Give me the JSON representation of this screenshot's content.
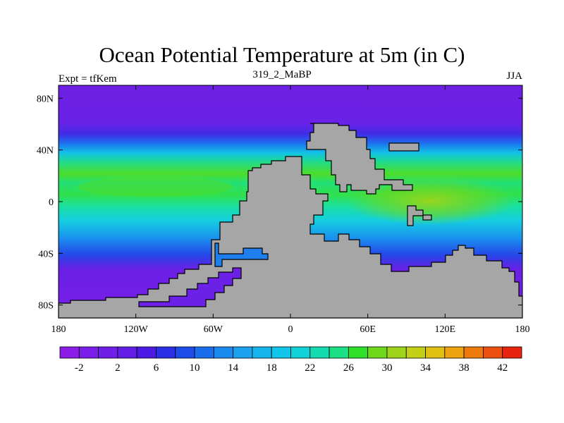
{
  "title": "Ocean Potential Temperature at 5m (in C)",
  "left_label": "Expt = tfKem",
  "center_label": "319_2_MaBP",
  "right_label": "JJA",
  "map": {
    "projection": "cylindrical equidistant",
    "lon_range": [
      -180,
      180
    ],
    "lat_range": [
      -90,
      90
    ],
    "land_color": "#a6a6a6",
    "x_ticks": [
      {
        "lon": -180,
        "label": "180"
      },
      {
        "lon": -120,
        "label": "120W"
      },
      {
        "lon": -60,
        "label": "60W"
      },
      {
        "lon": 0,
        "label": "0"
      },
      {
        "lon": 60,
        "label": "60E"
      },
      {
        "lon": 120,
        "label": "120E"
      },
      {
        "lon": 180,
        "label": "180"
      }
    ],
    "y_ticks": [
      {
        "lat": 80,
        "label": "80N"
      },
      {
        "lat": 40,
        "label": "40N"
      },
      {
        "lat": 0,
        "label": "0"
      },
      {
        "lat": -40,
        "label": "40S"
      },
      {
        "lat": -80,
        "label": "80S"
      }
    ]
  },
  "colorbar": {
    "levels": [
      -4,
      -2,
      0,
      2,
      4,
      6,
      8,
      10,
      12,
      14,
      16,
      18,
      20,
      22,
      24,
      26,
      28,
      30,
      32,
      34,
      36,
      38,
      40,
      42
    ],
    "colors": [
      "#8c1de9",
      "#7c1eea",
      "#6f1fe8",
      "#621ee6",
      "#4b1ae4",
      "#2a2fe6",
      "#1d4ce9",
      "#1c6ded",
      "#1b8aee",
      "#1aa2ee",
      "#15b6ee",
      "#11c6ea",
      "#10d3d8",
      "#14dcb0",
      "#1ce086",
      "#2fe02b",
      "#6ed81d",
      "#9ed41a",
      "#c4cf18",
      "#e0c112",
      "#eda20f",
      "#ee7a0e",
      "#ec4f0f",
      "#e8240f"
    ],
    "labels": [
      {
        "value": -2,
        "label": "-2"
      },
      {
        "value": 2,
        "label": "2"
      },
      {
        "value": 6,
        "label": "6"
      },
      {
        "value": 10,
        "label": "10"
      },
      {
        "value": 14,
        "label": "14"
      },
      {
        "value": 18,
        "label": "18"
      },
      {
        "value": 22,
        "label": "22"
      },
      {
        "value": 26,
        "label": "26"
      },
      {
        "value": 30,
        "label": "30"
      },
      {
        "value": 34,
        "label": "34"
      },
      {
        "value": 38,
        "label": "38"
      },
      {
        "value": 42,
        "label": "42"
      }
    ]
  }
}
